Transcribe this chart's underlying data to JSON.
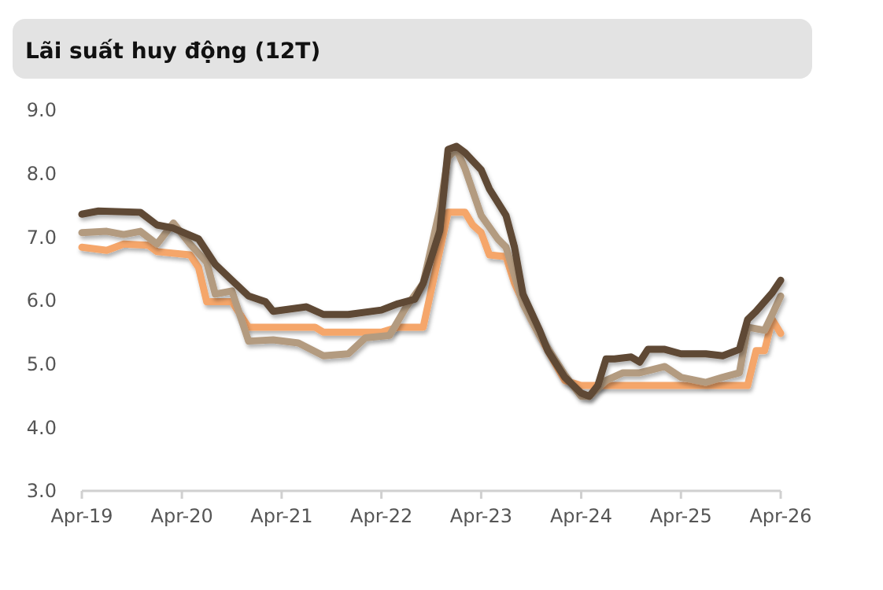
{
  "chart_data": {
    "type": "line",
    "title": "Lãi suất huy động (12T)",
    "xlim": [
      "2019-04",
      "2026-04"
    ],
    "xticks": [
      {
        "value": "2019-04",
        "label": "Apr-19"
      },
      {
        "value": "2020-04",
        "label": "Apr-20"
      },
      {
        "value": "2021-04",
        "label": "Apr-21"
      },
      {
        "value": "2022-04",
        "label": "Apr-22"
      },
      {
        "value": "2023-04",
        "label": "Apr-23"
      },
      {
        "value": "2024-04",
        "label": "Apr-24"
      },
      {
        "value": "2025-04",
        "label": "Apr-25"
      },
      {
        "value": "2026-04",
        "label": "Apr-26"
      }
    ],
    "ylim": [
      3,
      9
    ],
    "yticks": [
      {
        "value": 3,
        "label": "3.0"
      },
      {
        "value": 4,
        "label": "4.0"
      },
      {
        "value": 5,
        "label": "5.0"
      },
      {
        "value": 6,
        "label": "6.0"
      },
      {
        "value": 7,
        "label": "7.0"
      },
      {
        "value": 8,
        "label": "8.0"
      },
      {
        "value": 9,
        "label": "9.0"
      }
    ],
    "grid": false,
    "line_style": "solid",
    "marker": "none",
    "series": [
      {
        "color": "#f5a66b",
        "x": [
          "2019-04",
          "2019-07",
          "2019-09",
          "2019-12",
          "2020-01",
          "2020-05",
          "2020-06",
          "2020-07",
          "2020-10",
          "2020-12",
          "2021-08",
          "2021-09",
          "2022-04",
          "2022-06",
          "2022-09",
          "2022-12",
          "2023-02",
          "2023-03",
          "2023-04",
          "2023-05",
          "2023-07",
          "2023-08",
          "2023-10",
          "2023-12",
          "2024-02",
          "2024-04",
          "2025-12",
          "2026-01",
          "2026-02",
          "2026-03",
          "2026-04"
        ],
        "values": [
          6.84,
          6.79,
          6.89,
          6.87,
          6.77,
          6.72,
          6.52,
          5.98,
          5.98,
          5.58,
          5.58,
          5.5,
          5.5,
          5.58,
          5.58,
          7.39,
          7.39,
          7.19,
          7.07,
          6.72,
          6.69,
          6.27,
          5.7,
          5.21,
          4.74,
          4.66,
          4.66,
          5.21,
          5.21,
          5.7,
          5.48
        ]
      },
      {
        "color": "#b39b80",
        "x": [
          "2019-04",
          "2019-07",
          "2019-09",
          "2019-11",
          "2020-01",
          "2020-03",
          "2020-05",
          "2020-07",
          "2020-08",
          "2020-10",
          "2020-12",
          "2021-03",
          "2021-06",
          "2021-09",
          "2021-12",
          "2022-02",
          "2022-05",
          "2022-07",
          "2022-09",
          "2022-11",
          "2022-12",
          "2023-01",
          "2023-02",
          "2023-04",
          "2023-06",
          "2023-07",
          "2023-09",
          "2023-11",
          "2024-02",
          "2024-04",
          "2024-05",
          "2024-07",
          "2024-09",
          "2024-11",
          "2025-02",
          "2025-04",
          "2025-07",
          "2025-09",
          "2025-11",
          "2025-12",
          "2026-02",
          "2026-03",
          "2026-04"
        ],
        "values": [
          7.07,
          7.09,
          7.04,
          7.09,
          6.89,
          7.22,
          6.89,
          6.6,
          6.1,
          6.15,
          5.36,
          5.38,
          5.33,
          5.13,
          5.16,
          5.41,
          5.45,
          5.9,
          6.27,
          7.44,
          8.26,
          8.38,
          8.08,
          7.34,
          6.97,
          6.84,
          5.95,
          5.45,
          4.83,
          4.49,
          4.49,
          4.74,
          4.86,
          4.86,
          4.96,
          4.79,
          4.71,
          4.79,
          4.86,
          5.58,
          5.53,
          5.78,
          6.07
        ]
      },
      {
        "color": "#5e4834",
        "x": [
          "2019-04",
          "2019-06",
          "2019-11",
          "2020-01",
          "2020-03",
          "2020-06",
          "2020-08",
          "2020-10",
          "2020-12",
          "2021-02",
          "2021-03",
          "2021-07",
          "2021-09",
          "2021-12",
          "2022-04",
          "2022-06",
          "2022-08",
          "2022-09",
          "2022-11",
          "2022-12",
          "2023-01",
          "2023-02",
          "2023-04",
          "2023-05",
          "2023-07",
          "2023-08",
          "2023-09",
          "2023-11",
          "2023-12",
          "2024-02",
          "2024-04",
          "2024-05",
          "2024-06",
          "2024-07",
          "2024-08",
          "2024-10",
          "2024-11",
          "2024-12",
          "2025-02",
          "2025-04",
          "2025-07",
          "2025-09",
          "2025-11",
          "2025-12",
          "2026-01",
          "2026-03",
          "2026-04"
        ],
        "values": [
          7.36,
          7.41,
          7.39,
          7.19,
          7.14,
          6.97,
          6.57,
          6.32,
          6.07,
          5.98,
          5.83,
          5.9,
          5.78,
          5.78,
          5.85,
          5.95,
          6.02,
          6.27,
          7.1,
          8.38,
          8.43,
          8.33,
          8.06,
          7.76,
          7.34,
          6.84,
          6.1,
          5.53,
          5.21,
          4.79,
          4.54,
          4.49,
          4.66,
          5.08,
          5.08,
          5.11,
          5.03,
          5.23,
          5.23,
          5.16,
          5.16,
          5.13,
          5.23,
          5.7,
          5.83,
          6.12,
          6.32
        ]
      }
    ]
  }
}
